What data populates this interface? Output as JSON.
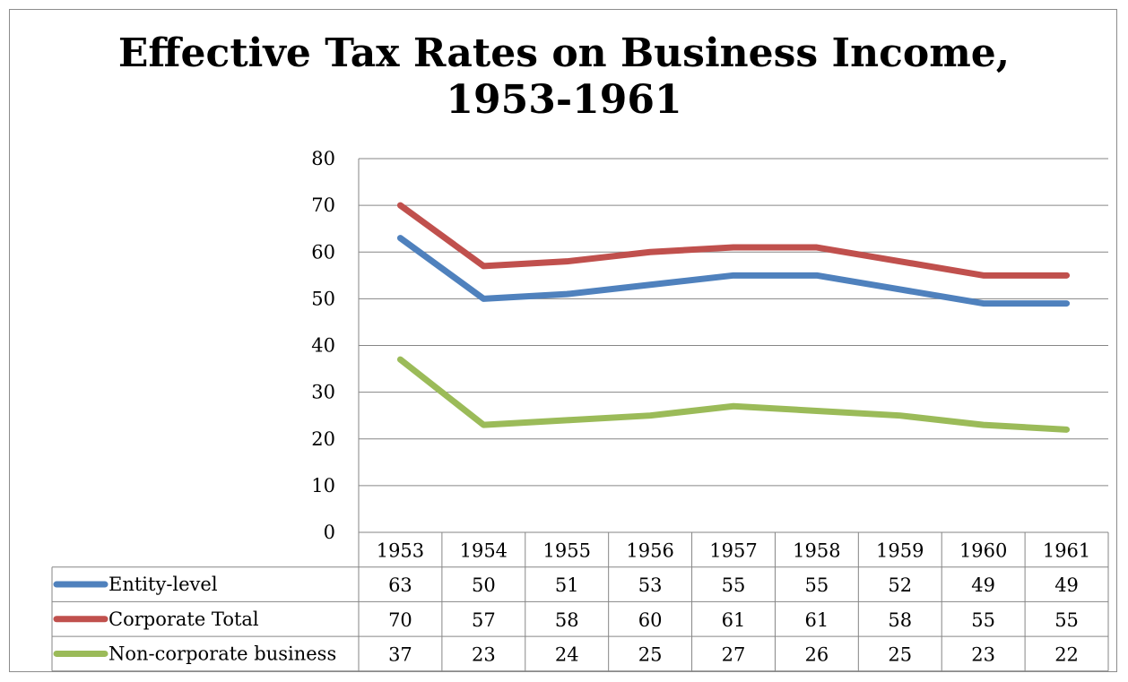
{
  "chart_data": {
    "type": "line",
    "title": [
      "Effective Tax Rates on Business Income,",
      "1953-1961"
    ],
    "categories": [
      "1953",
      "1954",
      "1955",
      "1956",
      "1957",
      "1958",
      "1959",
      "1960",
      "1961"
    ],
    "ylim": [
      0,
      80
    ],
    "yticks": [
      0,
      10,
      20,
      30,
      40,
      50,
      60,
      70,
      80
    ],
    "grid": true,
    "legend_placement": "data-table",
    "series": [
      {
        "name": "Entity-level",
        "color": "#4f81bd",
        "values": [
          63,
          50,
          51,
          53,
          55,
          55,
          52,
          49,
          49
        ]
      },
      {
        "name": "Corporate Total",
        "color": "#c0504d",
        "values": [
          70,
          57,
          58,
          60,
          61,
          61,
          58,
          55,
          55
        ]
      },
      {
        "name": "Non-corporate business",
        "color": "#9bbb59",
        "values": [
          37,
          23,
          24,
          25,
          27,
          26,
          25,
          23,
          22
        ]
      }
    ]
  }
}
